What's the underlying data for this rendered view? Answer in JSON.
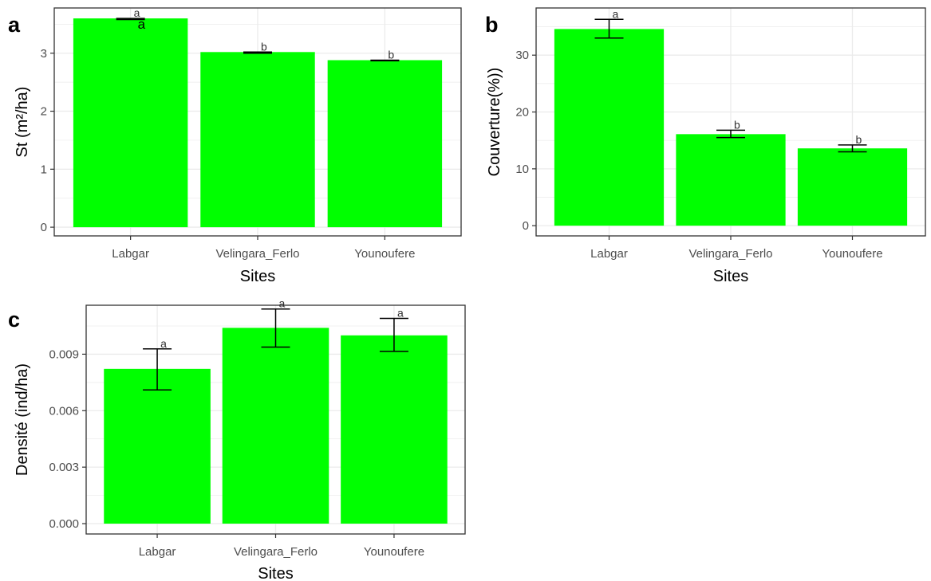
{
  "chart_data": [
    {
      "type": "bar",
      "panel": "a",
      "categories": [
        "Labgar",
        "Velingara_Ferlo",
        "Younoufere"
      ],
      "values": [
        3.6,
        3.02,
        2.88
      ],
      "error_low": [
        3.58,
        3.0,
        2.87
      ],
      "error_high": [
        3.6,
        3.02,
        2.88
      ],
      "labels": [
        "a",
        "b",
        "b"
      ],
      "extra_label": "a",
      "ylim": [
        -0.15,
        3.78
      ],
      "yticks": [
        0,
        1,
        2,
        3
      ],
      "tick_labels": [
        "0",
        "1",
        "2",
        "3"
      ],
      "xlabel": "Sites",
      "ylabel": "St (m²/ha)",
      "grid": true,
      "bar_color": "#00ff00"
    },
    {
      "type": "bar",
      "panel": "b",
      "categories": [
        "Labgar",
        "Velingara_Ferlo",
        "Younoufere"
      ],
      "values": [
        34.6,
        16.1,
        13.6
      ],
      "error_low": [
        33.0,
        15.5,
        13.0
      ],
      "error_high": [
        36.3,
        16.8,
        14.2
      ],
      "labels": [
        "a",
        "b",
        "b"
      ],
      "ylim": [
        -1.8,
        38.3
      ],
      "yticks": [
        0,
        10,
        20,
        30
      ],
      "tick_labels": [
        "0",
        "10",
        "20",
        "30"
      ],
      "xlabel": "Sites",
      "ylabel": "Couverture(%))",
      "grid": true,
      "bar_color": "#00ff00"
    },
    {
      "type": "bar",
      "panel": "c",
      "categories": [
        "Labgar",
        "Velingara_Ferlo",
        "Younoufere"
      ],
      "values": [
        0.00822,
        0.0104,
        0.01
      ],
      "error_low": [
        0.0071,
        0.00938,
        0.00915
      ],
      "error_high": [
        0.00928,
        0.0114,
        0.0109
      ],
      "labels": [
        "a",
        "a",
        "a"
      ],
      "ylim": [
        -0.00055,
        0.0116
      ],
      "yticks": [
        0,
        0.003,
        0.006,
        0.009
      ],
      "tick_labels": [
        "0.000",
        "0.003",
        "0.006",
        "0.009"
      ],
      "xlabel": "Sites",
      "ylabel": "Densité (ind/ha)",
      "grid": true,
      "bar_color": "#00ff00"
    }
  ]
}
